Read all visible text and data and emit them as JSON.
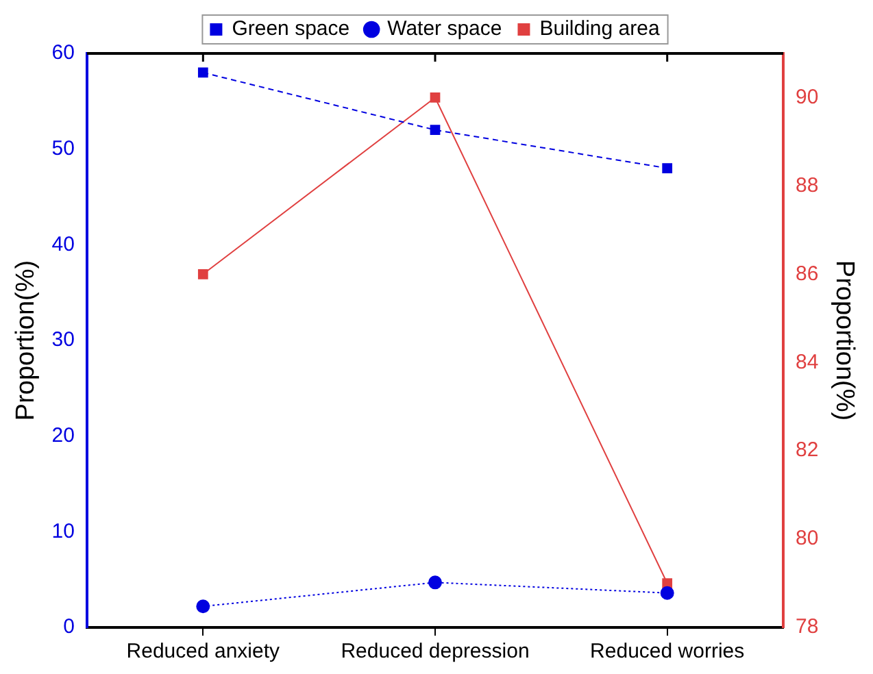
{
  "chart_data": {
    "type": "line",
    "categories": [
      "Reduced anxiety",
      "Reduced depression",
      "Reduced worries"
    ],
    "series": [
      {
        "name": "Green space",
        "color": "#0000e0",
        "values": [
          58,
          52,
          48
        ],
        "marker": "square",
        "line_style": "dashed"
      },
      {
        "name": "Water space",
        "color": "#0000e0",
        "values": [
          2.2,
          4.7,
          3.6
        ],
        "marker": "circle",
        "line_style": "dotted"
      },
      {
        "name": "Building area",
        "color": "#e04040",
        "values": [
          86,
          90,
          79
        ],
        "marker": "square",
        "line_style": "solid",
        "axis": "y2"
      }
    ],
    "ylabel": "Proportion(%)",
    "y2label": "Proportion(%)",
    "ylim": [
      0,
      60
    ],
    "yticks": [
      0,
      10,
      20,
      30,
      40,
      50,
      60
    ],
    "y2lim": [
      78,
      91
    ],
    "y2ticks": [
      78,
      80,
      82,
      84,
      86,
      88,
      90
    ],
    "grid": false,
    "legend": "top"
  }
}
